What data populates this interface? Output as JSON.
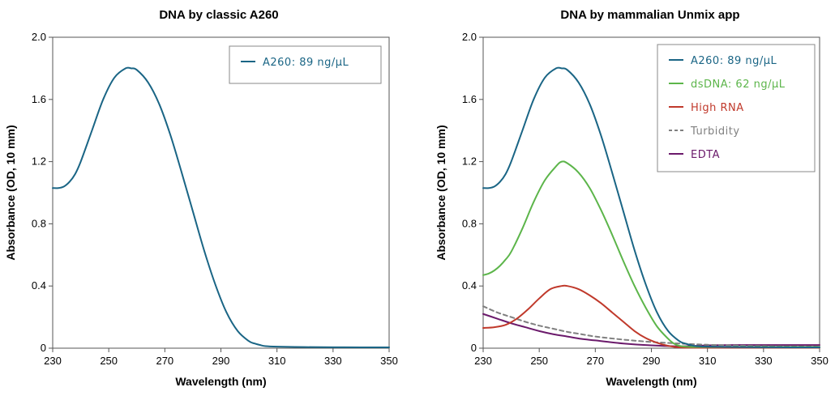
{
  "chart_data": [
    {
      "type": "line",
      "title": "DNA by classic A260",
      "xlabel": "Wavelength (nm)",
      "ylabel": "Absorbance (OD, 10 mm)",
      "xlim": [
        230,
        350
      ],
      "ylim": [
        0,
        2.0
      ],
      "xticks": [
        "230",
        "250",
        "270",
        "290",
        "310",
        "330",
        "350"
      ],
      "yticks": [
        "0",
        "0.4",
        "0.8",
        "1.2",
        "1.6",
        "2.0"
      ],
      "legend_position": "top-right",
      "series": [
        {
          "name": "A260: 89 ng/µL",
          "color": "#1a6585",
          "dash": false,
          "x": [
            230,
            232,
            234,
            236,
            238,
            240,
            244,
            248,
            252,
            256,
            258,
            260,
            264,
            268,
            272,
            276,
            280,
            284,
            288,
            292,
            296,
            300,
            302,
            304,
            306,
            310,
            320,
            330,
            340,
            350
          ],
          "y": [
            1.03,
            1.03,
            1.04,
            1.07,
            1.12,
            1.2,
            1.4,
            1.6,
            1.74,
            1.8,
            1.8,
            1.79,
            1.71,
            1.57,
            1.37,
            1.13,
            0.88,
            0.63,
            0.41,
            0.23,
            0.11,
            0.045,
            0.03,
            0.02,
            0.013,
            0.01,
            0.007,
            0.006,
            0.005,
            0.005
          ]
        }
      ]
    },
    {
      "type": "line",
      "title": "DNA by mammalian Unmix app",
      "xlabel": "Wavelength (nm)",
      "ylabel": "Absorbance (OD, 10 mm)",
      "xlim": [
        230,
        350
      ],
      "ylim": [
        0,
        2.0
      ],
      "xticks": [
        "230",
        "250",
        "270",
        "290",
        "310",
        "330",
        "350"
      ],
      "yticks": [
        "0",
        "0.4",
        "0.8",
        "1.2",
        "1.6",
        "2.0"
      ],
      "legend_position": "top-right",
      "series": [
        {
          "name": "A260: 89 ng/µL",
          "color": "#1a6585",
          "dash": false,
          "x": [
            230,
            232,
            234,
            236,
            238,
            240,
            244,
            248,
            252,
            256,
            258,
            260,
            264,
            268,
            272,
            276,
            280,
            284,
            288,
            292,
            296,
            300,
            302,
            304,
            306,
            310,
            320,
            330,
            340,
            350
          ],
          "y": [
            1.03,
            1.03,
            1.04,
            1.07,
            1.12,
            1.2,
            1.4,
            1.6,
            1.74,
            1.8,
            1.8,
            1.79,
            1.71,
            1.57,
            1.37,
            1.13,
            0.88,
            0.63,
            0.41,
            0.23,
            0.11,
            0.045,
            0.03,
            0.02,
            0.013,
            0.01,
            0.007,
            0.006,
            0.005,
            0.005
          ]
        },
        {
          "name": "dsDNA: 62 ng/µL",
          "color": "#5cb54a",
          "dash": false,
          "x": [
            230,
            232,
            234,
            236,
            238,
            240,
            244,
            248,
            252,
            256,
            258,
            260,
            264,
            268,
            272,
            276,
            280,
            284,
            288,
            292,
            296,
            298,
            300,
            304,
            310,
            320,
            330,
            340,
            350
          ],
          "y": [
            0.47,
            0.48,
            0.5,
            0.53,
            0.57,
            0.62,
            0.77,
            0.94,
            1.08,
            1.17,
            1.2,
            1.19,
            1.13,
            1.03,
            0.89,
            0.73,
            0.56,
            0.4,
            0.26,
            0.14,
            0.06,
            0.03,
            0.015,
            0.008,
            0.008,
            0.008,
            0.008,
            0.008,
            0.008
          ]
        },
        {
          "name": "High RNA",
          "color": "#c0392b",
          "dash": false,
          "x": [
            230,
            234,
            238,
            242,
            246,
            250,
            254,
            258,
            260,
            264,
            268,
            272,
            276,
            280,
            284,
            288,
            292,
            296,
            300,
            304,
            310,
            320,
            330,
            340,
            350
          ],
          "y": [
            0.13,
            0.135,
            0.15,
            0.19,
            0.25,
            0.32,
            0.38,
            0.4,
            0.4,
            0.38,
            0.34,
            0.29,
            0.23,
            0.17,
            0.11,
            0.065,
            0.035,
            0.015,
            0.005,
            0.003,
            0.003,
            0.003,
            0.003,
            0.003,
            0.003
          ]
        },
        {
          "name": "Turbidity",
          "color": "#808080",
          "dash": true,
          "x": [
            230,
            235,
            240,
            245,
            250,
            255,
            260,
            265,
            270,
            280,
            290,
            300,
            310,
            320,
            330,
            340,
            350
          ],
          "y": [
            0.27,
            0.23,
            0.2,
            0.17,
            0.145,
            0.125,
            0.105,
            0.09,
            0.075,
            0.055,
            0.04,
            0.03,
            0.022,
            0.017,
            0.013,
            0.011,
            0.01
          ]
        },
        {
          "name": "EDTA",
          "color": "#6b1a6b",
          "dash": false,
          "x": [
            230,
            235,
            240,
            245,
            250,
            255,
            260,
            265,
            270,
            280,
            290,
            300,
            310,
            320,
            330,
            340,
            350
          ],
          "y": [
            0.22,
            0.19,
            0.16,
            0.135,
            0.11,
            0.09,
            0.075,
            0.06,
            0.05,
            0.03,
            0.018,
            0.012,
            0.018,
            0.02,
            0.02,
            0.02,
            0.02
          ]
        }
      ]
    }
  ]
}
